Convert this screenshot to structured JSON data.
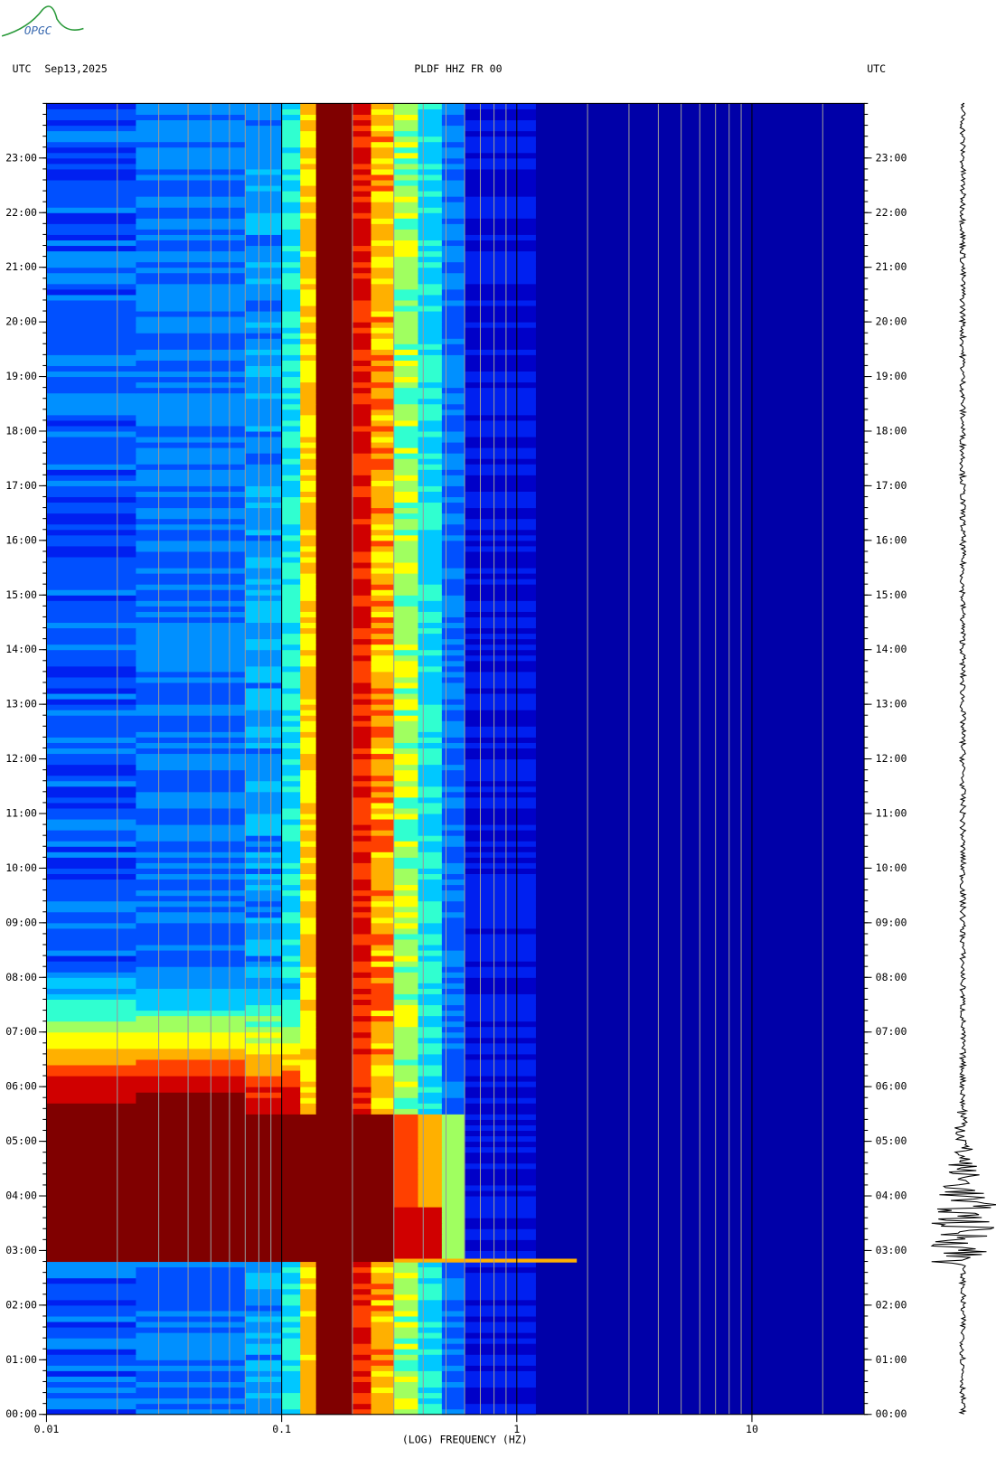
{
  "chart_data": {
    "type": "spectrogram",
    "logo": "OPGC",
    "left_header": "UTC",
    "date": "Sep13,2025",
    "title": "PLDF HHZ FR 00",
    "right_header": "UTC",
    "xlabel": "(LOG) FREQUENCY (HZ)",
    "xscale": "log",
    "xlim": [
      0.01,
      30
    ],
    "xticks": [
      0.01,
      0.1,
      1,
      10
    ],
    "ylim": [
      0,
      24
    ],
    "yticks": [
      {
        "value": 0,
        "label": "00:00"
      },
      {
        "value": 1,
        "label": "01:00"
      },
      {
        "value": 2,
        "label": "02:00"
      },
      {
        "value": 3,
        "label": "03:00"
      },
      {
        "value": 4,
        "label": "04:00"
      },
      {
        "value": 5,
        "label": "05:00"
      },
      {
        "value": 6,
        "label": "06:00"
      },
      {
        "value": 7,
        "label": "07:00"
      },
      {
        "value": 8,
        "label": "08:00"
      },
      {
        "value": 9,
        "label": "09:00"
      },
      {
        "value": 10,
        "label": "10:00"
      },
      {
        "value": 11,
        "label": "11:00"
      },
      {
        "value": 12,
        "label": "12:00"
      },
      {
        "value": 13,
        "label": "13:00"
      },
      {
        "value": 14,
        "label": "14:00"
      },
      {
        "value": 15,
        "label": "15:00"
      },
      {
        "value": 16,
        "label": "16:00"
      },
      {
        "value": 17,
        "label": "17:00"
      },
      {
        "value": 18,
        "label": "18:00"
      },
      {
        "value": 19,
        "label": "19:00"
      },
      {
        "value": 20,
        "label": "20:00"
      },
      {
        "value": 21,
        "label": "21:00"
      },
      {
        "value": 22,
        "label": "22:00"
      },
      {
        "value": 23,
        "label": "23:00"
      }
    ]
  }
}
